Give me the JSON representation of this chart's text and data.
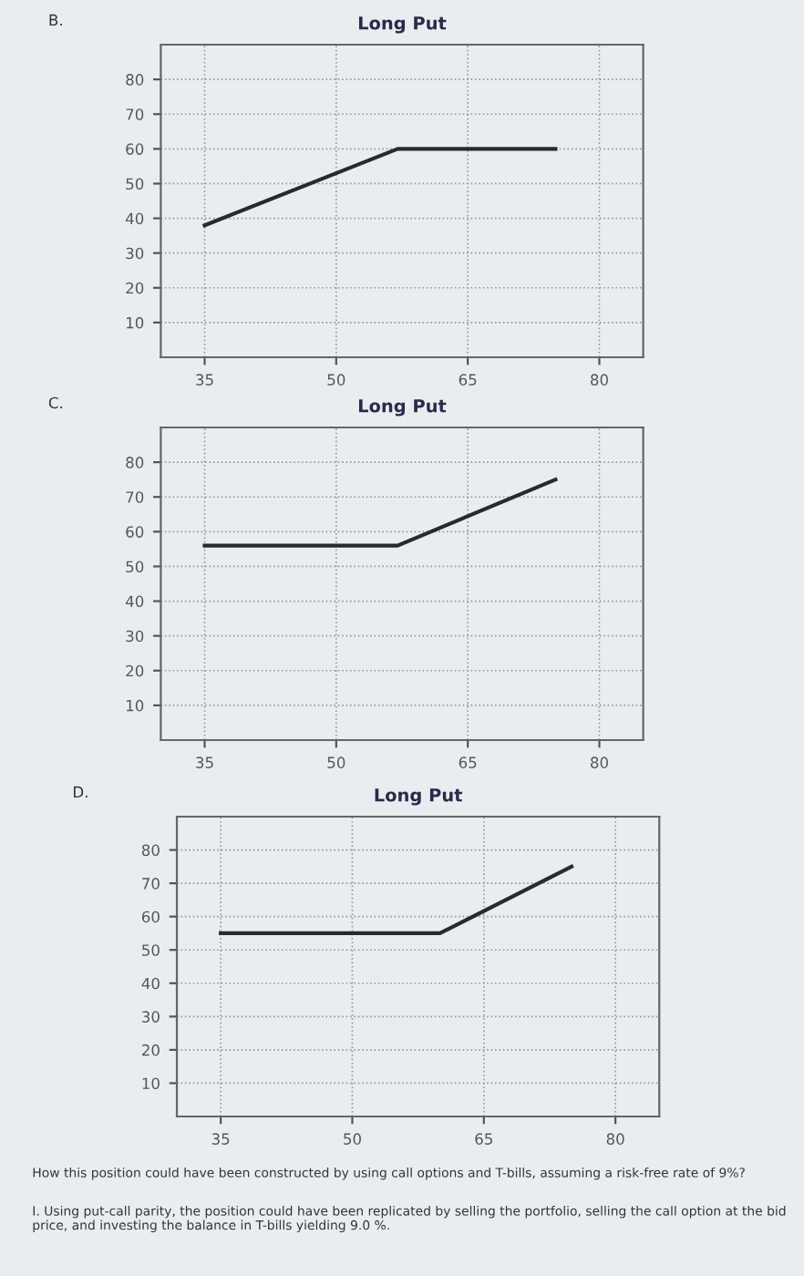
{
  "chart_data": [
    {
      "type": "line",
      "title": "Long Put",
      "x": [
        35,
        57,
        75
      ],
      "values": [
        38,
        60,
        60
      ],
      "color": "#2a2a2a",
      "xlim": [
        30,
        85
      ],
      "ylim": [
        0,
        90
      ],
      "xticks": [
        35,
        50,
        65,
        80
      ],
      "yticks": [
        10,
        20,
        30,
        40,
        50,
        60,
        70,
        80
      ],
      "grid": true,
      "marker": "none",
      "line_style": "solid",
      "annotations": [
        "B."
      ]
    },
    {
      "type": "line",
      "title": "Long Put",
      "x": [
        35,
        57,
        75
      ],
      "values": [
        56,
        56,
        75
      ],
      "color": "#2a2a2a",
      "xlim": [
        30,
        85
      ],
      "ylim": [
        0,
        90
      ],
      "xticks": [
        35,
        50,
        65,
        80
      ],
      "yticks": [
        10,
        20,
        30,
        40,
        50,
        60,
        70,
        80
      ],
      "grid": true,
      "marker": "none",
      "line_style": "solid",
      "annotations": [
        "C."
      ]
    },
    {
      "type": "line",
      "title": "Long Put",
      "x": [
        35,
        60,
        75
      ],
      "values": [
        55,
        55,
        75
      ],
      "color": "#2a2a2a",
      "xlim": [
        30,
        85
      ],
      "ylim": [
        0,
        90
      ],
      "xticks": [
        35,
        50,
        65,
        80
      ],
      "yticks": [
        10,
        20,
        30,
        40,
        50,
        60,
        70,
        80
      ],
      "grid": true,
      "marker": "none",
      "line_style": "solid",
      "annotations": [
        "D.",
        "How this position could have been constructed by using call options and T-bills, assuming a risk-free rate of 9%?",
        "I. Using put-call parity, the position could have been replicated by selling the portfolio, selling the call option at the bid price, and investing the balance in T-bills yielding 9.0 %."
      ]
    }
  ]
}
